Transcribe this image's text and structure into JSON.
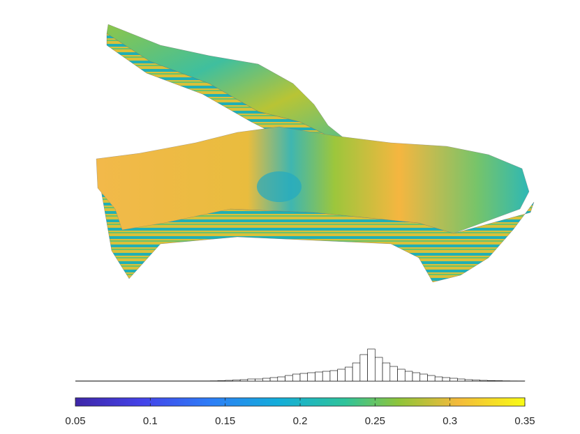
{
  "chart_data": [
    {
      "type": "histogram",
      "bins": [
        0.14,
        0.145,
        0.15,
        0.155,
        0.16,
        0.165,
        0.17,
        0.175,
        0.18,
        0.185,
        0.19,
        0.195,
        0.2,
        0.205,
        0.21,
        0.215,
        0.22,
        0.225,
        0.23,
        0.235,
        0.24,
        0.245,
        0.25,
        0.255,
        0.26,
        0.265,
        0.27,
        0.275,
        0.28,
        0.285,
        0.29,
        0.295,
        0.3,
        0.305,
        0.31,
        0.315,
        0.32,
        0.325,
        0.33,
        0.335,
        0.34,
        0.345,
        0.35
      ],
      "values": [
        0.3,
        0.5,
        1,
        1.5,
        2,
        3,
        3,
        4,
        5,
        6,
        8,
        10,
        11,
        12,
        13,
        14,
        15,
        17,
        20,
        26,
        38,
        46,
        34,
        26,
        21,
        17,
        14,
        12,
        10,
        8,
        6,
        5,
        4,
        3,
        2,
        1.5,
        1,
        0.7,
        0.5,
        0.3,
        0.2,
        0.1
      ],
      "xlim": [
        0.05,
        0.35
      ],
      "ylim": [
        0,
        50
      ],
      "color": "#ffffff"
    },
    {
      "type": "colorbar",
      "xlim": [
        0.05,
        0.35
      ],
      "xticks": [
        0.05,
        0.1,
        0.15,
        0.2,
        0.25,
        0.3,
        0.35
      ]
    }
  ]
}
